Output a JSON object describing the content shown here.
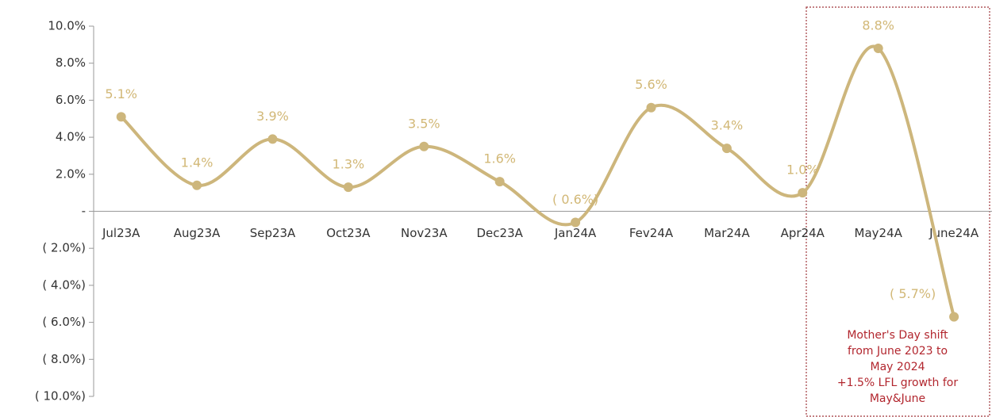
{
  "chart_data": {
    "type": "line",
    "categories": [
      "Jul23A",
      "Aug23A",
      "Sep23A",
      "Oct23A",
      "Nov23A",
      "Dec23A",
      "Jan24A",
      "Fev24A",
      "Mar24A",
      "Apr24A",
      "May24A",
      "June24A"
    ],
    "series": [
      {
        "color": "#cdb67c",
        "values": [
          5.1,
          1.4,
          3.9,
          1.3,
          3.5,
          1.6,
          -0.6,
          5.6,
          3.4,
          1.0,
          8.8,
          -5.7
        ],
        "value_labels": [
          "5.1%",
          "1.4%",
          "3.9%",
          "1.3%",
          "3.5%",
          "1.6%",
          "( 0.6%)",
          "5.6%",
          "3.4%",
          "1.0%",
          "8.8%",
          "( 5.7%)"
        ]
      }
    ],
    "ylim": [
      -10,
      10
    ],
    "yticks": [
      {
        "value": -10,
        "label": "( 10.0%)"
      },
      {
        "value": -8,
        "label": "( 8.0%)"
      },
      {
        "value": -6,
        "label": "( 6.0%)"
      },
      {
        "value": -4,
        "label": "( 4.0%)"
      },
      {
        "value": -2,
        "label": "( 2.0%)"
      },
      {
        "value": 0,
        "label": "-"
      },
      {
        "value": 2,
        "label": "2.0%"
      },
      {
        "value": 4,
        "label": "4.0%"
      },
      {
        "value": 6,
        "label": "6.0%"
      },
      {
        "value": 8,
        "label": "8.0%"
      },
      {
        "value": 10,
        "label": "10.0%"
      }
    ],
    "annotation": [
      "Mother's Day shift",
      "from June 2023 to",
      "May 2024",
      "+1.5% LFL growth for",
      "May&June"
    ],
    "annotation_color": "#b2262e"
  }
}
